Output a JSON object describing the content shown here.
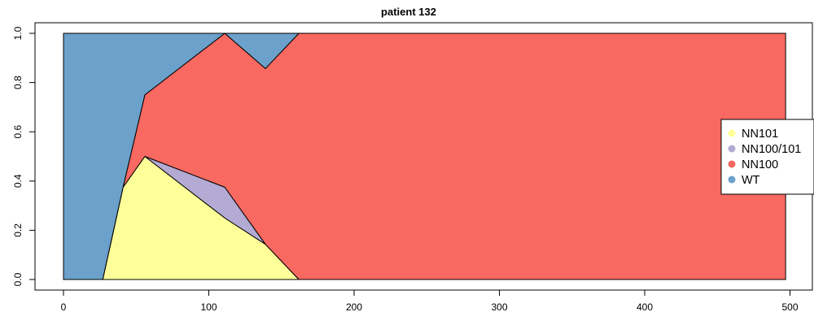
{
  "chart_data": {
    "type": "area",
    "title": "patient 132",
    "xlabel": "",
    "ylabel": "",
    "xlim": [
      0,
      500
    ],
    "ylim": [
      0,
      1
    ],
    "x_ticks": [
      "0",
      "100",
      "200",
      "300",
      "400",
      "500"
    ],
    "y_ticks": [
      "0.0",
      "0.2",
      "0.4",
      "0.6",
      "0.8",
      "1.0"
    ],
    "x": [
      0,
      27,
      41,
      56,
      111,
      139,
      162,
      497
    ],
    "series": [
      {
        "name": "NN101",
        "color": "#FFFF99",
        "values": [
          0,
          0,
          0.375,
          0.5,
          0.25,
          0.143,
          0,
          0
        ]
      },
      {
        "name": "NN100/101",
        "color": "#B3ABD3",
        "values": [
          0,
          0,
          0,
          0,
          0.125,
          0,
          0,
          0
        ]
      },
      {
        "name": "NN100",
        "color": "#F76961",
        "values": [
          0,
          0,
          0,
          0.25,
          0.625,
          0.714,
          1,
          1
        ]
      },
      {
        "name": "WT",
        "color": "#6BA1CA",
        "values": [
          1,
          1,
          0.625,
          0.25,
          0,
          0.143,
          0,
          0
        ]
      }
    ],
    "stacked": true,
    "legend_position": "right",
    "grid": false
  }
}
